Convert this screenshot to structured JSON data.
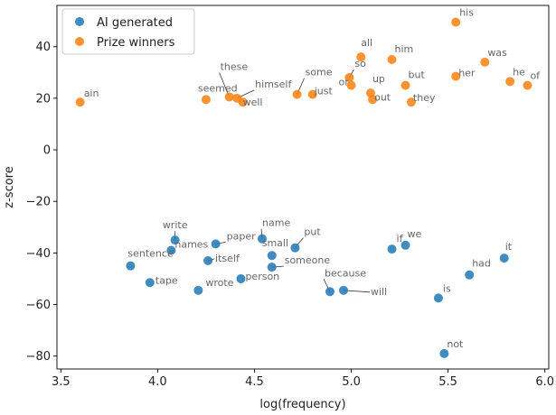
{
  "chart_data": {
    "type": "scatter",
    "title": "",
    "xlabel": "log(frequency)",
    "ylabel": "z-score",
    "xlim": [
      3.48,
      6.02
    ],
    "ylim": [
      -85,
      56
    ],
    "xticks": [
      3.5,
      4.0,
      4.5,
      5.0,
      5.5,
      6.0
    ],
    "xtick_labels": [
      "3.5",
      "4.0",
      "4.5",
      "5.0",
      "5.5",
      "6.0"
    ],
    "yticks": [
      -80,
      -60,
      -40,
      -20,
      0,
      20,
      40
    ],
    "ytick_labels": [
      "−80",
      "−60",
      "−40",
      "−20",
      "0",
      "20",
      "40"
    ],
    "grid": false,
    "legend_position": "top-left",
    "series": [
      {
        "name": "AI generated",
        "color": "#1f77b4",
        "points": [
          {
            "label": "write",
            "x": 4.09,
            "y": -35
          },
          {
            "label": "names",
            "x": 4.07,
            "y": -39
          },
          {
            "label": "sentence",
            "x": 3.86,
            "y": -45
          },
          {
            "label": "tape",
            "x": 3.96,
            "y": -51.5
          },
          {
            "label": "paper",
            "x": 4.3,
            "y": -36.5
          },
          {
            "label": "itself",
            "x": 4.26,
            "y": -43
          },
          {
            "label": "wrote",
            "x": 4.21,
            "y": -54.5
          },
          {
            "label": "person",
            "x": 4.43,
            "y": -50
          },
          {
            "label": "name",
            "x": 4.54,
            "y": -34.5
          },
          {
            "label": "small",
            "x": 4.59,
            "y": -41
          },
          {
            "label": "someone",
            "x": 4.59,
            "y": -45.5
          },
          {
            "label": "put",
            "x": 4.71,
            "y": -38
          },
          {
            "label": "because",
            "x": 4.89,
            "y": -55
          },
          {
            "label": "will",
            "x": 4.96,
            "y": -54.5
          },
          {
            "label": "if",
            "x": 5.21,
            "y": -38.5
          },
          {
            "label": "we",
            "x": 5.28,
            "y": -37
          },
          {
            "label": "is",
            "x": 5.45,
            "y": -57.5
          },
          {
            "label": "it",
            "x": 5.79,
            "y": -42
          },
          {
            "label": "had",
            "x": 5.61,
            "y": -48.5
          },
          {
            "label": "not",
            "x": 5.48,
            "y": -79
          }
        ]
      },
      {
        "name": "Prize winners",
        "color": "#ff7f0e",
        "points": [
          {
            "label": "ain",
            "x": 3.6,
            "y": 18.5
          },
          {
            "label": "seemed",
            "x": 4.25,
            "y": 19.5
          },
          {
            "label": "these",
            "x": 4.37,
            "y": 20.5
          },
          {
            "label": "himself",
            "x": 4.41,
            "y": 20
          },
          {
            "label": "well",
            "x": 4.44,
            "y": 18.5
          },
          {
            "label": "some",
            "x": 4.72,
            "y": 21.5
          },
          {
            "label": "just",
            "x": 4.8,
            "y": 21.5
          },
          {
            "label": "all",
            "x": 5.05,
            "y": 36
          },
          {
            "label": "so",
            "x": 4.99,
            "y": 28
          },
          {
            "label": "or",
            "x": 5.0,
            "y": 25
          },
          {
            "label": "up",
            "x": 5.1,
            "y": 22
          },
          {
            "label": "out",
            "x": 5.11,
            "y": 19.5
          },
          {
            "label": "him",
            "x": 5.21,
            "y": 35
          },
          {
            "label": "but",
            "x": 5.28,
            "y": 25
          },
          {
            "label": "they",
            "x": 5.31,
            "y": 18.5
          },
          {
            "label": "his",
            "x": 5.54,
            "y": 49.5
          },
          {
            "label": "her",
            "x": 5.54,
            "y": 28.5
          },
          {
            "label": "was",
            "x": 5.69,
            "y": 34
          },
          {
            "label": "he",
            "x": 5.82,
            "y": 26.5
          },
          {
            "label": "of",
            "x": 5.91,
            "y": 25
          }
        ]
      }
    ]
  }
}
